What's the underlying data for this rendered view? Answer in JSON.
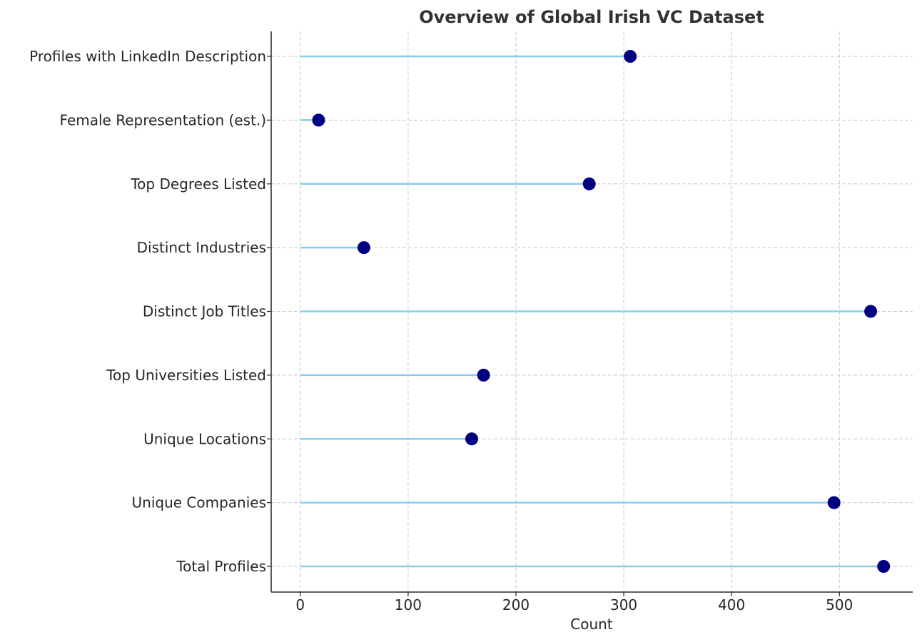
{
  "chart_data": {
    "type": "lollipop",
    "title": "Overview of Global Irish VC Dataset",
    "xlabel": "Count",
    "ylabel": "",
    "xlim": [
      -27,
      568
    ],
    "xticks": [
      0,
      100,
      200,
      300,
      400,
      500
    ],
    "grid": true,
    "orientation": "horizontal",
    "stem_color": "#87ceeb",
    "marker_color": "#000080",
    "categories": [
      "Total Profiles",
      "Unique Companies",
      "Unique Locations",
      "Top Universities Listed",
      "Distinct Job Titles",
      "Distinct Industries",
      "Top Degrees Listed",
      "Female Representation (est.)",
      "Profiles with LinkedIn Description"
    ],
    "values": [
      541,
      495,
      159,
      170,
      529,
      59,
      268,
      17,
      306
    ]
  }
}
